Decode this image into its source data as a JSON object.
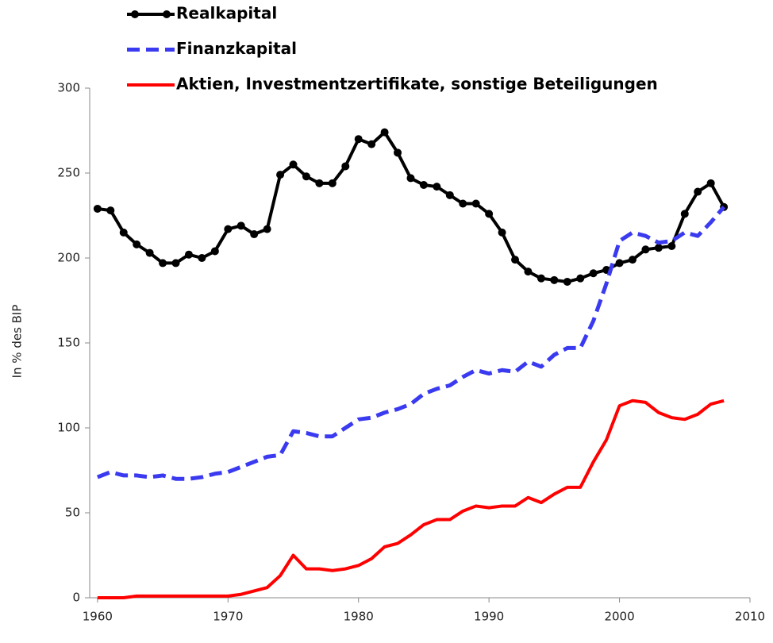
{
  "chart_data": {
    "type": "line",
    "ylabel": "In % des BIP",
    "x": [
      1960,
      1961,
      1962,
      1963,
      1964,
      1965,
      1966,
      1967,
      1968,
      1969,
      1970,
      1971,
      1972,
      1973,
      1974,
      1975,
      1976,
      1977,
      1978,
      1979,
      1980,
      1981,
      1982,
      1983,
      1984,
      1985,
      1986,
      1987,
      1988,
      1989,
      1990,
      1991,
      1992,
      1993,
      1994,
      1995,
      1996,
      1997,
      1998,
      1999,
      2000,
      2001,
      2002,
      2003,
      2004,
      2005,
      2006,
      2007,
      2008
    ],
    "series": [
      {
        "name": "Realkapital",
        "color": "#000000",
        "marker": "circle",
        "dash": "solid",
        "values": [
          229,
          228,
          215,
          208,
          203,
          197,
          197,
          202,
          200,
          204,
          217,
          219,
          214,
          217,
          249,
          255,
          248,
          244,
          244,
          254,
          270,
          267,
          274,
          262,
          247,
          243,
          242,
          237,
          232,
          232,
          226,
          215,
          199,
          192,
          188,
          187,
          186,
          188,
          191,
          193,
          197,
          199,
          205,
          206,
          207,
          226,
          239,
          244,
          230
        ]
      },
      {
        "name": "Finanzkapital",
        "color": "#3a3af0",
        "marker": "none",
        "dash": "dashed",
        "values": [
          71,
          74,
          72,
          72,
          71,
          72,
          70,
          70,
          71,
          73,
          74,
          77,
          80,
          83,
          84,
          98,
          97,
          95,
          95,
          100,
          105,
          106,
          109,
          111,
          114,
          120,
          123,
          125,
          130,
          134,
          132,
          134,
          133,
          139,
          136,
          143,
          147,
          147,
          163,
          185,
          210,
          215,
          213,
          209,
          210,
          215,
          213,
          221,
          230
        ]
      },
      {
        "name": "Aktien, Investmentzertifikate, sonstige Beteiligungen",
        "color": "#ff0000",
        "marker": "none",
        "dash": "solid",
        "values": [
          0,
          0,
          0,
          1,
          1,
          1,
          1,
          1,
          1,
          1,
          1,
          2,
          4,
          6,
          13,
          25,
          17,
          17,
          16,
          17,
          19,
          23,
          30,
          32,
          37,
          43,
          46,
          46,
          51,
          54,
          53,
          54,
          54,
          59,
          56,
          61,
          65,
          65,
          80,
          93,
          113,
          116,
          115,
          109,
          106,
          105,
          108,
          114,
          116
        ]
      }
    ],
    "xlim": [
      1959.4,
      2010
    ],
    "xticks": [
      1960,
      1970,
      1980,
      1990,
      2000,
      2010
    ],
    "ylim": [
      0,
      300
    ],
    "yticks": [
      0,
      50,
      100,
      150,
      200,
      250,
      300
    ],
    "grid": false,
    "legend": "top-left"
  }
}
